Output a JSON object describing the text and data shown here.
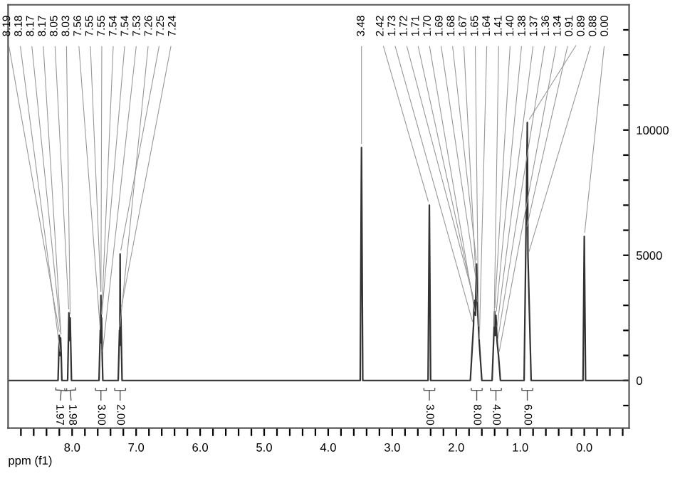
{
  "chart_data": {
    "type": "line",
    "xlabel": "ppm (f1)",
    "xlim": [
      9.0,
      -0.7
    ],
    "ylim": [
      -1900,
      15000
    ],
    "xticks": [
      {
        "value": 8.0,
        "label": "8.0"
      },
      {
        "value": 7.0,
        "label": "7.0"
      },
      {
        "value": 6.0,
        "label": "6.0"
      },
      {
        "value": 5.0,
        "label": "5.0"
      },
      {
        "value": 4.0,
        "label": "4.0"
      },
      {
        "value": 3.0,
        "label": "3.0"
      },
      {
        "value": 2.0,
        "label": "2.0"
      },
      {
        "value": 1.0,
        "label": "1.0"
      },
      {
        "value": 0.0,
        "label": "0.0"
      },
      {
        "value": 8.8,
        "label": null
      },
      {
        "value": 8.6,
        "label": null
      },
      {
        "value": 8.4,
        "label": null
      },
      {
        "value": 8.2,
        "label": null
      },
      {
        "value": 7.8,
        "label": null
      },
      {
        "value": 7.6,
        "label": null
      },
      {
        "value": 7.4,
        "label": null
      },
      {
        "value": 7.2,
        "label": null
      },
      {
        "value": 6.8,
        "label": null
      },
      {
        "value": 6.6,
        "label": null
      },
      {
        "value": 6.4,
        "label": null
      },
      {
        "value": 6.2,
        "label": null
      },
      {
        "value": 5.8,
        "label": null
      },
      {
        "value": 5.6,
        "label": null
      },
      {
        "value": 5.4,
        "label": null
      },
      {
        "value": 5.2,
        "label": null
      },
      {
        "value": 4.8,
        "label": null
      },
      {
        "value": 4.6,
        "label": null
      },
      {
        "value": 4.4,
        "label": null
      },
      {
        "value": 4.2,
        "label": null
      },
      {
        "value": 3.8,
        "label": null
      },
      {
        "value": 3.6,
        "label": null
      },
      {
        "value": 3.4,
        "label": null
      },
      {
        "value": 3.2,
        "label": null
      },
      {
        "value": 2.8,
        "label": null
      },
      {
        "value": 2.6,
        "label": null
      },
      {
        "value": 2.4,
        "label": null
      },
      {
        "value": 2.2,
        "label": null
      },
      {
        "value": 1.8,
        "label": null
      },
      {
        "value": 1.6,
        "label": null
      },
      {
        "value": 1.4,
        "label": null
      },
      {
        "value": 1.2,
        "label": null
      },
      {
        "value": 0.8,
        "label": null
      },
      {
        "value": 0.6,
        "label": null
      },
      {
        "value": 0.4,
        "label": null
      },
      {
        "value": 0.2,
        "label": null
      },
      {
        "value": -0.2,
        "label": null
      },
      {
        "value": -0.4,
        "label": null
      },
      {
        "value": -0.6,
        "label": null
      }
    ],
    "yticks": [
      0,
      5000,
      10000,
      {
        "value": -1000,
        "label": null
      },
      {
        "value": 1000,
        "label": null
      },
      {
        "value": 2000,
        "label": null
      },
      {
        "value": 3000,
        "label": null
      },
      {
        "value": 4000,
        "label": null
      },
      {
        "value": 6000,
        "label": null
      },
      {
        "value": 7000,
        "label": null
      },
      {
        "value": 8000,
        "label": null
      },
      {
        "value": 9000,
        "label": null
      },
      {
        "value": 11000,
        "label": null
      },
      {
        "value": 12000,
        "label": null
      },
      {
        "value": 13000,
        "label": null
      },
      {
        "value": 14000,
        "label": null
      }
    ],
    "grid": false,
    "legend": false,
    "marker": "none",
    "line_style": "solid",
    "series": [
      {
        "color": "#333333",
        "x": [
          9.0,
          8.22,
          8.2,
          8.19,
          8.18,
          8.17,
          8.16,
          8.07,
          8.05,
          8.04,
          8.03,
          8.01,
          7.58,
          7.56,
          7.555,
          7.55,
          7.545,
          7.54,
          7.53,
          7.52,
          7.28,
          7.26,
          7.255,
          7.25,
          7.245,
          7.24,
          7.22,
          3.5,
          3.48,
          3.46,
          2.44,
          2.42,
          2.4,
          1.78,
          1.73,
          1.72,
          1.71,
          1.7,
          1.69,
          1.68,
          1.67,
          1.65,
          1.64,
          1.6,
          1.44,
          1.41,
          1.4,
          1.39,
          1.38,
          1.37,
          1.36,
          1.34,
          1.31,
          0.94,
          0.91,
          0.9,
          0.89,
          0.88,
          0.86,
          0.83,
          0.02,
          0.0,
          -0.02,
          -0.7
        ],
        "values": [
          0,
          0,
          1800,
          1000,
          1700,
          1000,
          0,
          0,
          2700,
          1600,
          2500,
          0,
          0,
          2000,
          1500,
          3400,
          1800,
          2500,
          1000,
          0,
          0,
          2000,
          1400,
          5050,
          2000,
          2800,
          0,
          0,
          9300,
          0,
          0,
          7000,
          0,
          0,
          2200,
          3200,
          3000,
          2600,
          4000,
          4650,
          3000,
          2000,
          1500,
          0,
          0,
          2000,
          2750,
          1800,
          2600,
          2000,
          1500,
          1000,
          0,
          0,
          6000,
          8000,
          10300,
          5000,
          3000,
          0,
          0,
          5750,
          0,
          0
        ]
      }
    ],
    "annotations": [
      {
        "text": "8.19",
        "x": 8.19,
        "y": 1800
      },
      {
        "text": "8.18",
        "x": 8.18,
        "y": 1000
      },
      {
        "text": "8.17",
        "x": 8.17,
        "y": 1700
      },
      {
        "text": "8.17",
        "x": 8.17,
        "y": 1700
      },
      {
        "text": "8.05",
        "x": 8.05,
        "y": 2700
      },
      {
        "text": "8.03",
        "x": 8.03,
        "y": 2500
      },
      {
        "text": "7.56",
        "x": 7.56,
        "y": 2000
      },
      {
        "text": "7.55",
        "x": 7.55,
        "y": 3400
      },
      {
        "text": "7.55",
        "x": 7.55,
        "y": 3400
      },
      {
        "text": "7.54",
        "x": 7.54,
        "y": 2500
      },
      {
        "text": "7.54",
        "x": 7.54,
        "y": 2500
      },
      {
        "text": "7.53",
        "x": 7.53,
        "y": 1000
      },
      {
        "text": "7.26",
        "x": 7.26,
        "y": 2000
      },
      {
        "text": "7.25",
        "x": 7.25,
        "y": 5050
      },
      {
        "text": "7.24",
        "x": 7.24,
        "y": 2800
      },
      {
        "text": "3.48",
        "x": 3.48,
        "y": 9300
      },
      {
        "text": "2.42",
        "x": 2.42,
        "y": 7000
      },
      {
        "text": "1.73",
        "x": 1.73,
        "y": 2200
      },
      {
        "text": "1.72",
        "x": 1.72,
        "y": 3200
      },
      {
        "text": "1.71",
        "x": 1.71,
        "y": 3000
      },
      {
        "text": "1.70",
        "x": 1.7,
        "y": 2600
      },
      {
        "text": "1.69",
        "x": 1.69,
        "y": 4000
      },
      {
        "text": "1.68",
        "x": 1.68,
        "y": 4650
      },
      {
        "text": "1.67",
        "x": 1.67,
        "y": 3000
      },
      {
        "text": "1.65",
        "x": 1.65,
        "y": 2000
      },
      {
        "text": "1.64",
        "x": 1.64,
        "y": 1500
      },
      {
        "text": "1.41",
        "x": 1.41,
        "y": 2000
      },
      {
        "text": "1.40",
        "x": 1.4,
        "y": 2750
      },
      {
        "text": "1.38",
        "x": 1.38,
        "y": 2600
      },
      {
        "text": "1.37",
        "x": 1.37,
        "y": 2000
      },
      {
        "text": "1.36",
        "x": 1.36,
        "y": 1500
      },
      {
        "text": "1.34",
        "x": 1.34,
        "y": 1000
      },
      {
        "text": "0.91",
        "x": 0.91,
        "y": 6000
      },
      {
        "text": "0.89",
        "x": 0.89,
        "y": 10300
      },
      {
        "text": "0.88",
        "x": 0.88,
        "y": 5000
      },
      {
        "text": "0.00",
        "x": 0.0,
        "y": 5750
      },
      {
        "text": "1.97",
        "x": 8.16,
        "y": 0
      },
      {
        "text": "1.98",
        "x": 8.04,
        "y": 0
      },
      {
        "text": "3.00",
        "x": 7.55,
        "y": 0
      },
      {
        "text": "2.00",
        "x": 7.25,
        "y": 0
      },
      {
        "text": "3.00",
        "x": 2.42,
        "y": 0
      },
      {
        "text": "8.00",
        "x": 1.68,
        "y": 0
      },
      {
        "text": "4.00",
        "x": 1.38,
        "y": 0
      },
      {
        "text": "6.00",
        "x": 0.89,
        "y": 0
      }
    ]
  }
}
